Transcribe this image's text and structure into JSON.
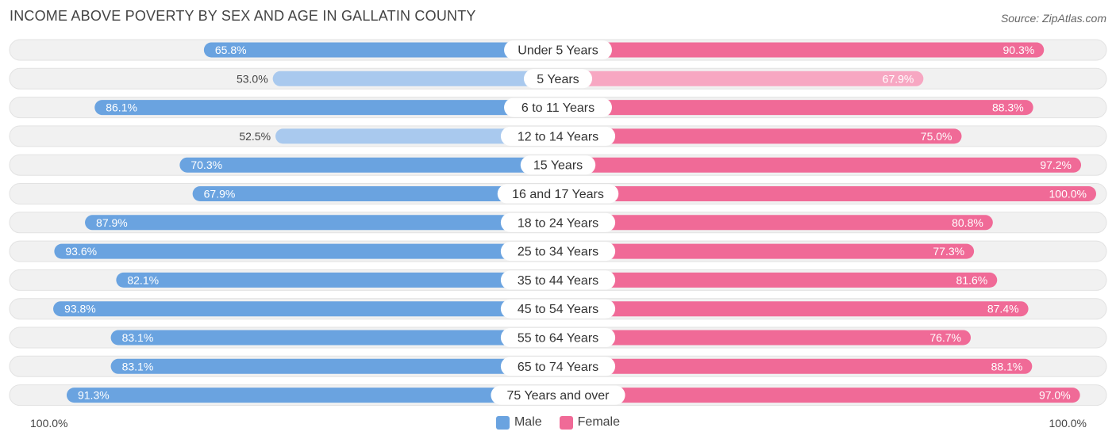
{
  "title": "INCOME ABOVE POVERTY BY SEX AND AGE IN GALLATIN COUNTY",
  "source": "Source: ZipAtlas.com",
  "axis": {
    "left_label": "100.0%",
    "right_label": "100.0%"
  },
  "legend": {
    "male_label": "Male",
    "female_label": "Female"
  },
  "colors": {
    "male_strong": "#6aa3e0",
    "male_light": "#a9c9ee",
    "female_strong": "#f06a97",
    "female_light": "#f7a7c2",
    "track": "#f1f1f1",
    "track_border": "#e2e2e2"
  },
  "chart_data": {
    "type": "bar",
    "orientation": "horizontal-diverging",
    "title": "INCOME ABOVE POVERTY BY SEX AND AGE IN GALLATIN COUNTY",
    "xlim": [
      0,
      100
    ],
    "unit": "%",
    "categories": [
      "Under 5 Years",
      "5 Years",
      "6 to 11 Years",
      "12 to 14 Years",
      "15 Years",
      "16 and 17 Years",
      "18 to 24 Years",
      "25 to 34 Years",
      "35 to 44 Years",
      "45 to 54 Years",
      "55 to 64 Years",
      "65 to 74 Years",
      "75 Years and over"
    ],
    "series": [
      {
        "name": "Male",
        "values": [
          65.8,
          53.0,
          86.1,
          52.5,
          70.3,
          67.9,
          87.9,
          93.6,
          82.1,
          93.8,
          83.1,
          83.1,
          91.3
        ],
        "labels": [
          "65.8%",
          "53.0%",
          "86.1%",
          "52.5%",
          "70.3%",
          "67.9%",
          "87.9%",
          "93.6%",
          "82.1%",
          "93.8%",
          "83.1%",
          "83.1%",
          "91.3%"
        ]
      },
      {
        "name": "Female",
        "values": [
          90.3,
          67.9,
          88.3,
          75.0,
          97.2,
          100.0,
          80.8,
          77.3,
          81.6,
          87.4,
          76.7,
          88.1,
          97.0
        ],
        "labels": [
          "90.3%",
          "67.9%",
          "88.3%",
          "75.0%",
          "97.2%",
          "100.0%",
          "80.8%",
          "77.3%",
          "81.6%",
          "87.4%",
          "76.7%",
          "88.1%",
          "97.0%"
        ]
      }
    ]
  }
}
